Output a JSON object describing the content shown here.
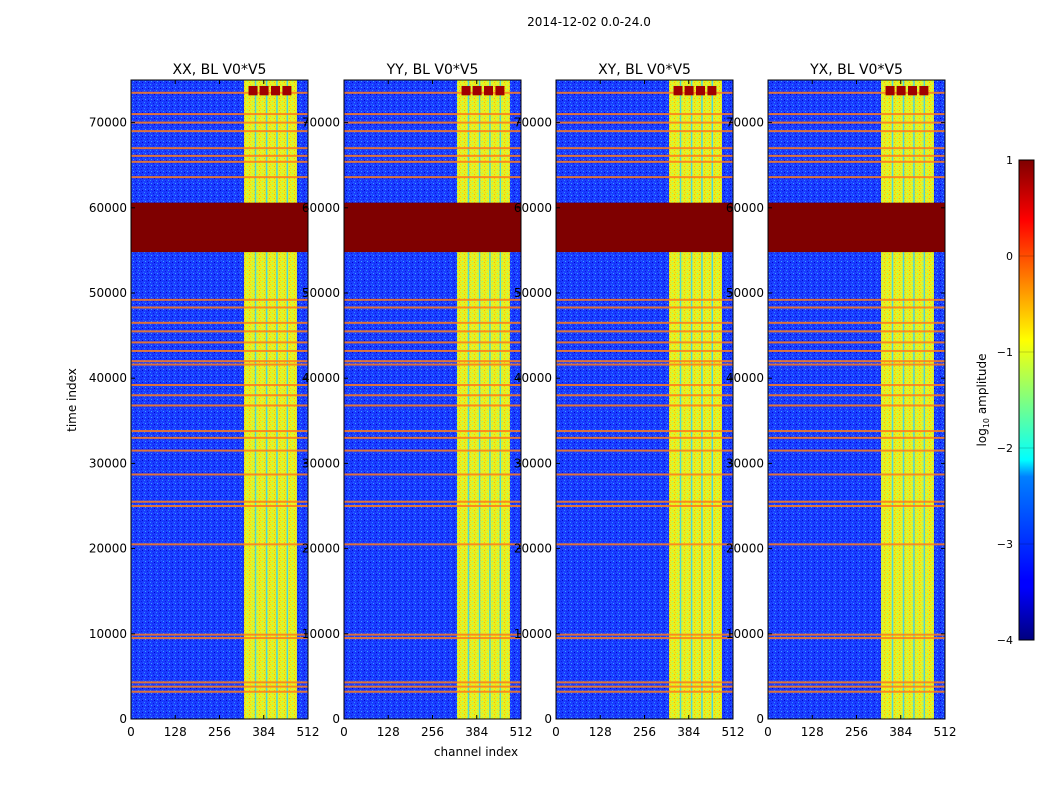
{
  "figure": {
    "suptitle": "2014-12-02 0.0-24.0"
  },
  "chart_data": {
    "type": "heatmap",
    "title": "2014-12-02 0.0-24.0",
    "xlabel": "channel index",
    "ylabel": "time index",
    "xlim": [
      0,
      512
    ],
    "ylim": [
      0,
      75000
    ],
    "xticks": [
      0,
      128,
      256,
      384,
      512
    ],
    "yticks": [
      0,
      10000,
      20000,
      30000,
      40000,
      50000,
      60000,
      70000
    ],
    "colormap": "jet",
    "panels": [
      {
        "title": "XX, BL V0*V5"
      },
      {
        "title": "YY, BL V0*V5"
      },
      {
        "title": "XY, BL V0*V5"
      },
      {
        "title": "YX, BL V0*V5"
      }
    ],
    "colorbar": {
      "label_prefix": "log",
      "label_sub": "10",
      "label_suffix": " amplitude",
      "range": [
        -4,
        1
      ],
      "ticks": [
        1,
        0,
        -1,
        -2,
        -3,
        -4
      ],
      "tick_labels": [
        "1",
        "0",
        "−1",
        "−2",
        "−3",
        "−4"
      ]
    },
    "saturated_band": [
      54800,
      60600
    ],
    "bright_channel_band": [
      327,
      480
    ],
    "rfi_time_lines": [
      3200,
      3800,
      4300,
      9500,
      9900,
      20500,
      25000,
      25500,
      28700,
      31500,
      33000,
      33800,
      36800,
      38000,
      39200,
      41600,
      42000,
      43200,
      44200,
      45500,
      46500,
      48300,
      49200,
      63600,
      65400,
      66100,
      67000,
      69000,
      70000,
      71000,
      73500
    ]
  }
}
